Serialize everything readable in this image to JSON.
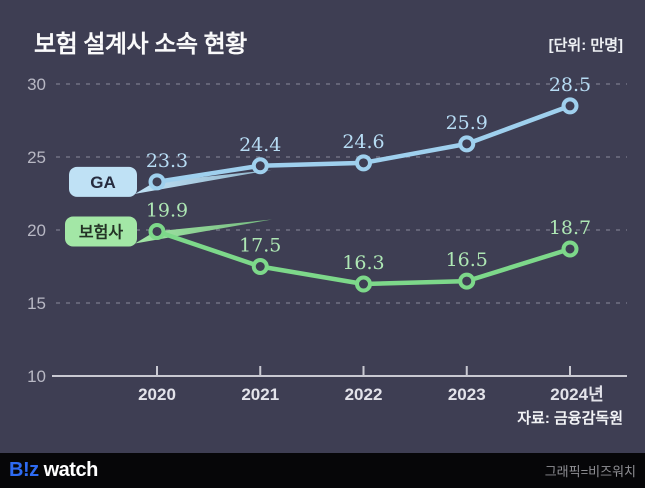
{
  "header": {
    "title": "보험 설계사 소속 현황",
    "unit_label": "[단위: 만명]"
  },
  "chart_data": {
    "type": "line",
    "title": "보험 설계사 소속 현황",
    "categories": [
      "2020",
      "2021",
      "2022",
      "2023",
      "2024년"
    ],
    "series": [
      {
        "name": "GA",
        "values": [
          23.3,
          24.4,
          24.6,
          25.9,
          28.5
        ],
        "line_color": "#9fd0ee",
        "tag_bg": "#bfe1f5",
        "tag_arrow": "#8fb3c9",
        "tag_text_color": "#272c3f",
        "value_label_color": "#b7dcf4"
      },
      {
        "name": "보험사",
        "values": [
          19.9,
          17.5,
          16.3,
          16.5,
          18.7
        ],
        "line_color": "#7dd88a",
        "tag_bg": "#a3e7a6",
        "tag_arrow": "#74b97f",
        "tag_text_color": "#233225",
        "value_label_color": "#aee7b4"
      }
    ],
    "y_ticks": [
      10,
      15,
      20,
      25,
      30
    ],
    "ylim": [
      10,
      30
    ],
    "xlabel": "",
    "ylabel": "",
    "grid": "horizontal dashed",
    "legend_position": "inline tags pointing at first data point",
    "axis_color": "#c9c9d2",
    "grid_color": "#a5a5b4",
    "y_label_color": "#b8b8c4",
    "x_label_color": "#e3e3ea",
    "background_color": "#3e3e53"
  },
  "source": "자료: 금융감독원",
  "footer": {
    "logo_biz": "B!z",
    "logo_watch": "watch",
    "credit": "그래픽=비즈워치"
  }
}
